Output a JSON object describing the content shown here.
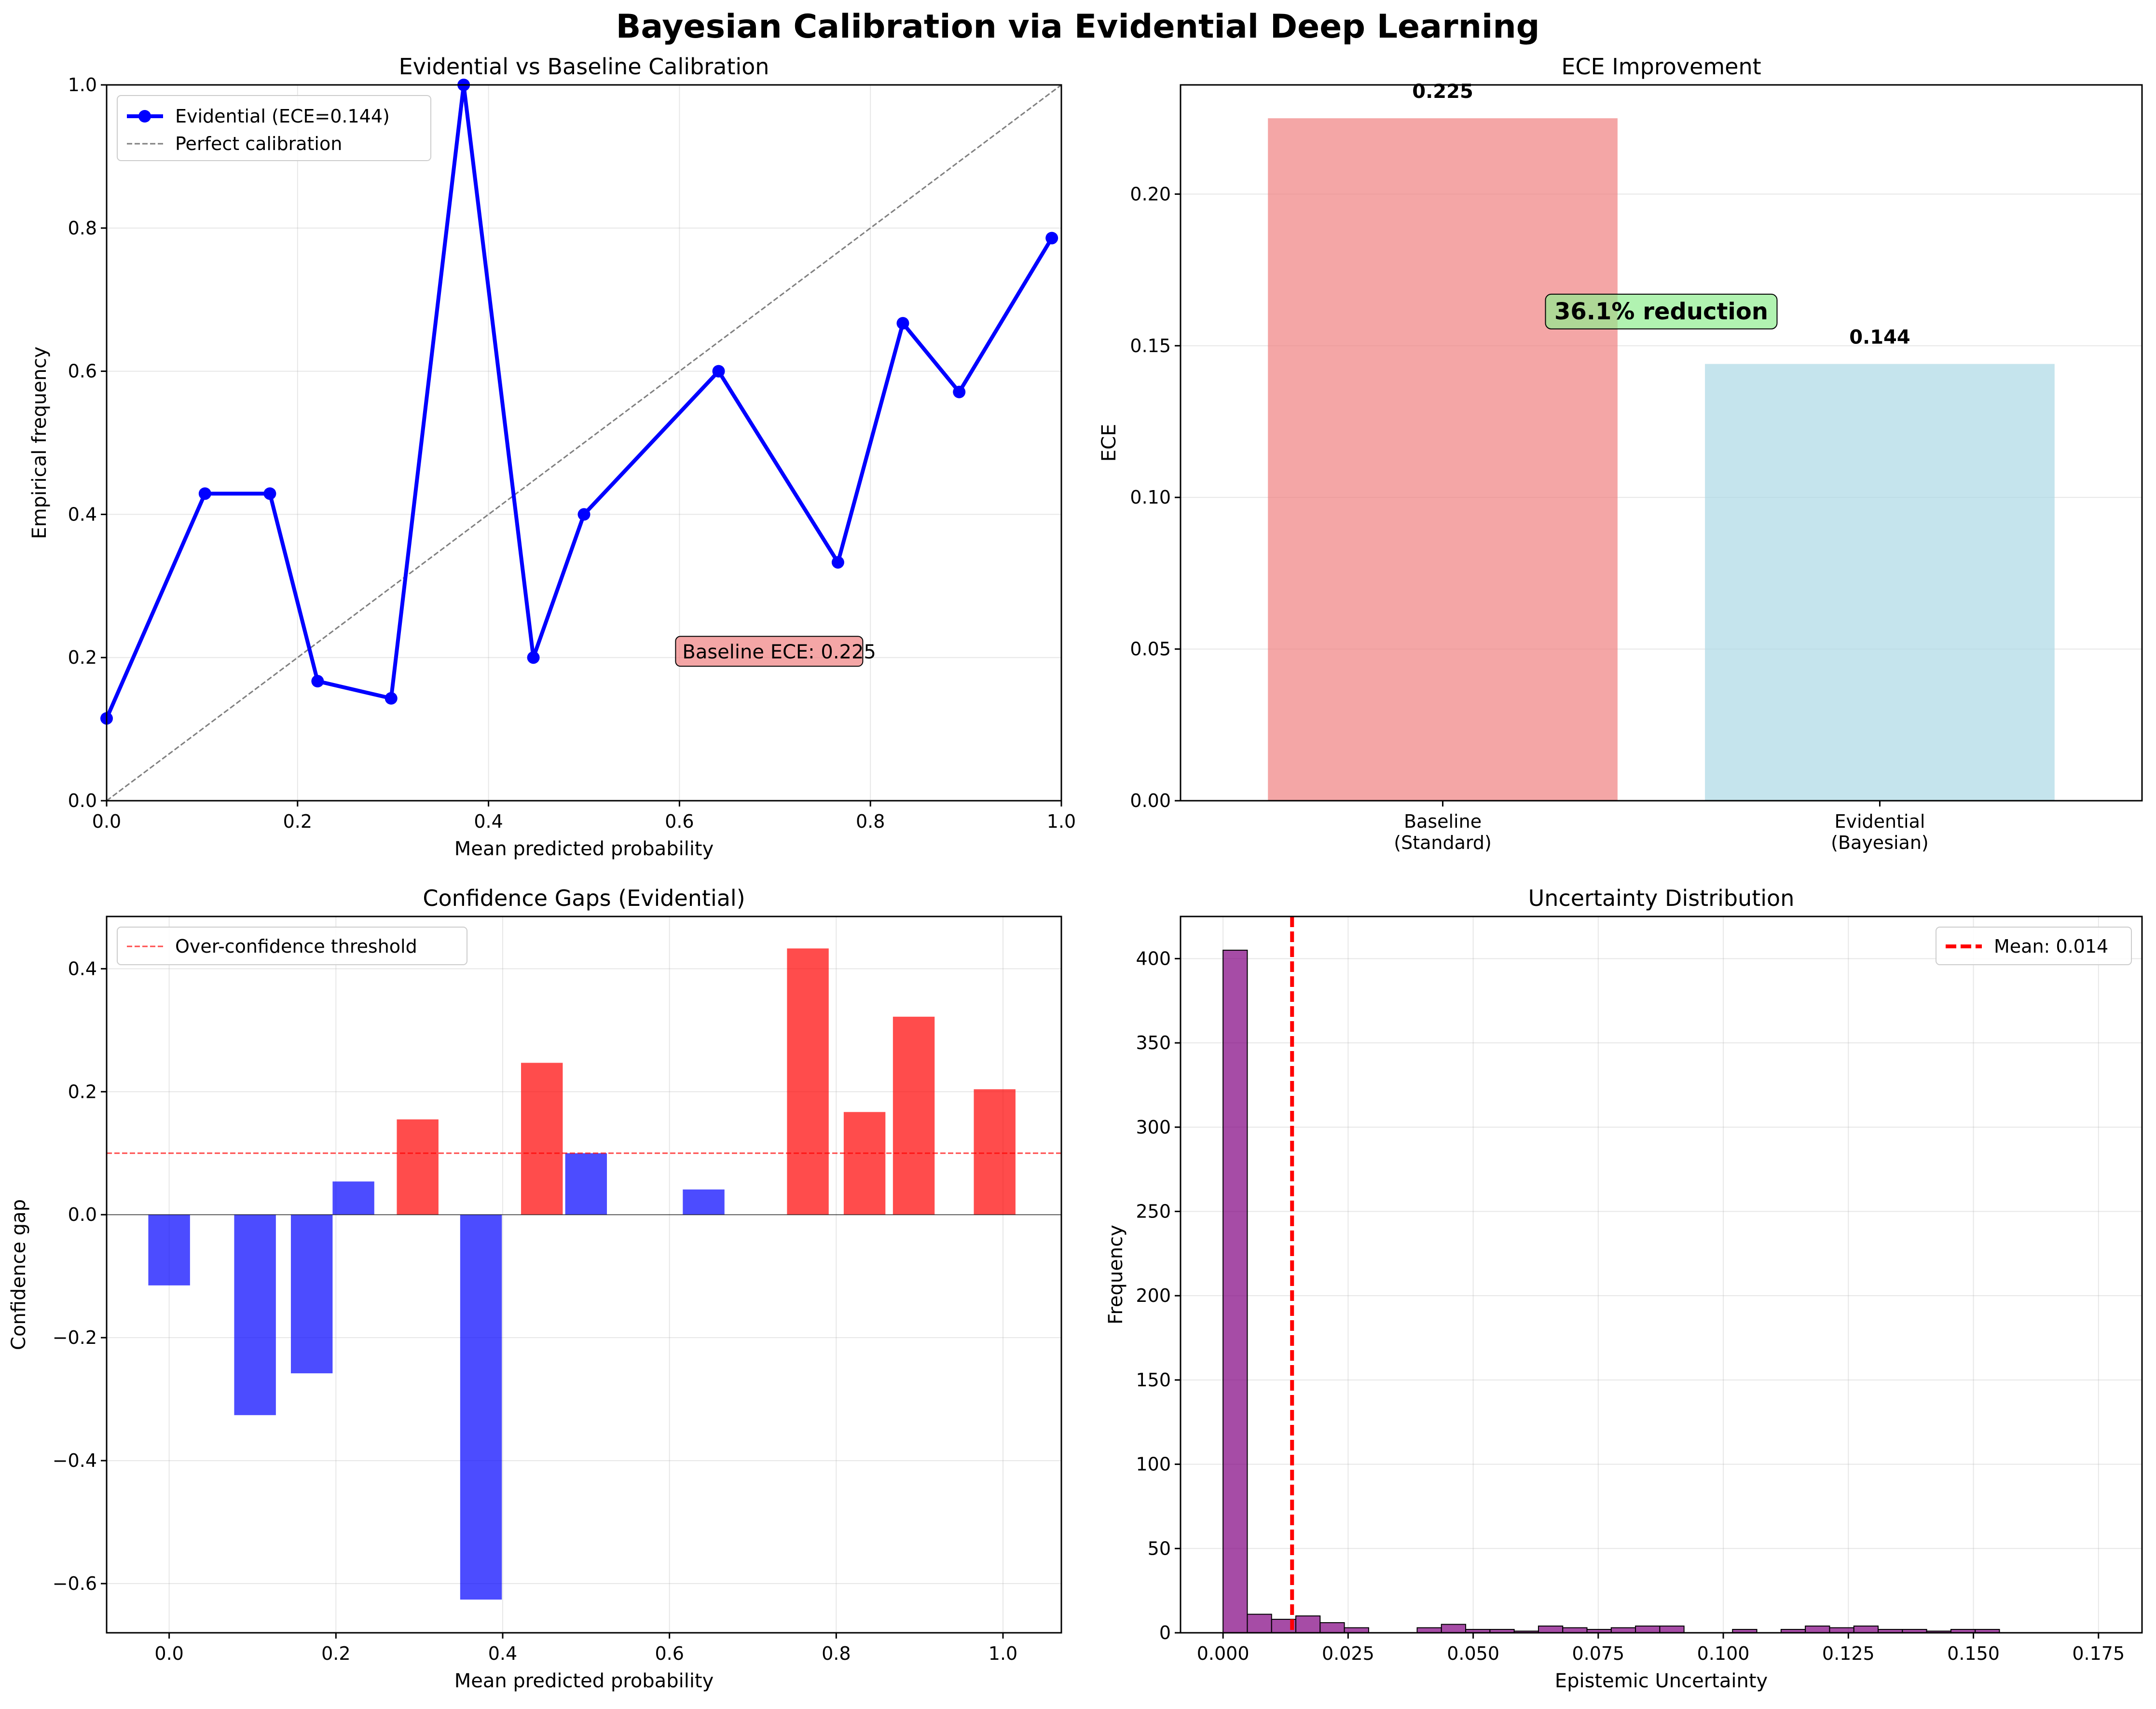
{
  "figure": {
    "suptitle": "Bayesian Calibration via Evidential Deep Learning"
  },
  "chart_data": [
    {
      "id": "calibration",
      "type": "line",
      "title": "Evidential vs Baseline Calibration",
      "xlabel": "Mean predicted probability",
      "ylabel": "Empirical frequency",
      "xlim": [
        0,
        1
      ],
      "ylim": [
        0,
        1
      ],
      "xticks": [
        "0.0",
        "0.2",
        "0.4",
        "0.6",
        "0.8",
        "1.0"
      ],
      "yticks": [
        "0.0",
        "0.2",
        "0.4",
        "0.6",
        "0.8",
        "1.0"
      ],
      "grid": true,
      "legend_position": "top-left",
      "series": [
        {
          "name": "Evidential (ECE=0.144)",
          "color": "#0000ff",
          "marker": "circle",
          "x": [
            0.0,
            0.103,
            0.171,
            0.221,
            0.298,
            0.374,
            0.447,
            0.5,
            0.641,
            0.766,
            0.834,
            0.893,
            0.99
          ],
          "y": [
            0.115,
            0.429,
            0.429,
            0.167,
            0.143,
            1.0,
            0.2,
            0.4,
            0.6,
            0.333,
            0.667,
            0.571,
            0.786
          ]
        },
        {
          "name": "Perfect calibration",
          "color": "#808080",
          "style": "dashed",
          "x": [
            0,
            1
          ],
          "y": [
            0,
            1
          ]
        }
      ],
      "annotation": {
        "text": "Baseline ECE: 0.225",
        "x": 0.6,
        "y": 0.2,
        "color": "#f08080"
      }
    },
    {
      "id": "ece",
      "type": "bar",
      "title": "ECE Improvement",
      "xlabel": "",
      "ylabel": "ECE",
      "categories": [
        [
          "Baseline",
          "(Standard)"
        ],
        [
          "Evidential",
          "(Bayesian)"
        ]
      ],
      "values": [
        0.225,
        0.144
      ],
      "value_labels": [
        "0.225",
        "0.144"
      ],
      "colors": [
        "#f08080",
        "#add8e6"
      ],
      "ylim": [
        0,
        0.236
      ],
      "yticks": [
        "0.00",
        "0.05",
        "0.10",
        "0.15",
        "0.20"
      ],
      "grid": true,
      "annotation": {
        "text": "36.1% reduction",
        "y": 0.16,
        "color": "#90ee90"
      }
    },
    {
      "id": "gaps",
      "type": "bar",
      "title": "Confidence Gaps (Evidential)",
      "xlabel": "Mean predicted probability",
      "ylabel": "Confidence gap",
      "x": [
        0.0,
        0.103,
        0.171,
        0.221,
        0.298,
        0.374,
        0.447,
        0.5,
        0.641,
        0.766,
        0.834,
        0.893,
        0.99
      ],
      "values": [
        -0.115,
        -0.326,
        -0.258,
        0.054,
        0.155,
        -0.626,
        0.247,
        0.1,
        0.041,
        0.433,
        0.167,
        0.322,
        0.204
      ],
      "bar_width": 0.05,
      "color_positive_over_threshold": "#ff0000",
      "color_other": "#0000ff",
      "threshold": {
        "name": "Over-confidence threshold",
        "value": 0.1,
        "color": "#ff0000"
      },
      "xlim": [
        -0.075,
        1.07
      ],
      "ylim": [
        -0.68,
        0.485
      ],
      "xticks": [
        "0.0",
        "0.2",
        "0.4",
        "0.6",
        "0.8",
        "1.0"
      ],
      "yticks": [
        "−0.6",
        "−0.4",
        "−0.2",
        "0.0",
        "0.2",
        "0.4"
      ],
      "grid": true,
      "legend_position": "top-left"
    },
    {
      "id": "uncertainty",
      "type": "bar",
      "title": "Uncertainty Distribution",
      "xlabel": "Epistemic Uncertainty",
      "ylabel": "Frequency",
      "bin_start": 0.0,
      "bin_width": 0.00485,
      "counts": [
        405,
        11,
        8,
        10,
        6,
        3,
        0,
        0,
        3,
        5,
        2,
        2,
        1,
        4,
        3,
        2,
        3,
        4,
        4,
        0,
        0,
        2,
        0,
        2,
        4,
        3,
        4,
        2,
        2,
        1,
        2,
        2
      ],
      "color": "#800080",
      "mean": {
        "name": "Mean: 0.014",
        "value": 0.0138,
        "color": "#ff0000"
      },
      "xlim": [
        -0.0085,
        0.1837
      ],
      "ylim": [
        0,
        425
      ],
      "xticks": [
        "0.000",
        "0.025",
        "0.050",
        "0.075",
        "0.100",
        "0.125",
        "0.150",
        "0.175"
      ],
      "yticks": [
        "0",
        "50",
        "100",
        "150",
        "200",
        "250",
        "300",
        "350",
        "400"
      ],
      "grid": true,
      "legend_position": "top-right"
    }
  ]
}
